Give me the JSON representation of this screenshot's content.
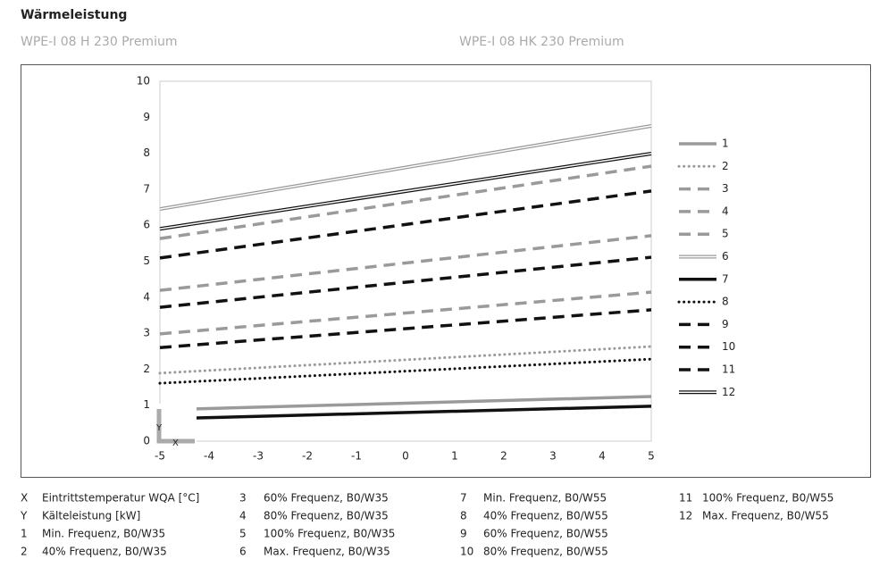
{
  "header": {
    "title": "Wärmeleistung",
    "models": [
      "WPE-I 08 H 230 Premium",
      "WPE-I 08 HK 230 Premium"
    ]
  },
  "chart_data": {
    "type": "line",
    "xlabel": "X",
    "ylabel": "Y",
    "x": [
      -5,
      5
    ],
    "xlim": [
      -5,
      5
    ],
    "xticks": [
      -5,
      -4,
      -3,
      -2,
      -1,
      0,
      1,
      2,
      3,
      4,
      5
    ],
    "ylim": [
      0,
      10
    ],
    "yticks": [
      0,
      1,
      2,
      3,
      4,
      5,
      6,
      7,
      8,
      9,
      10
    ],
    "grid": true,
    "legend": "right",
    "series": [
      {
        "name": "1",
        "color": "#9a9a9a",
        "style": "solid",
        "values": [
          0.87,
          1.24
        ]
      },
      {
        "name": "2",
        "color": "#9a9a9a",
        "style": "dotted",
        "values": [
          1.89,
          2.63
        ]
      },
      {
        "name": "3",
        "color": "#9a9a9a",
        "style": "dashed",
        "values": [
          2.98,
          4.14
        ]
      },
      {
        "name": "4",
        "color": "#9a9a9a",
        "style": "dashed",
        "values": [
          4.19,
          5.71
        ]
      },
      {
        "name": "5",
        "color": "#9a9a9a",
        "style": "dashed",
        "values": [
          5.63,
          7.64
        ]
      },
      {
        "name": "6",
        "color": "#9a9a9a",
        "style": "double",
        "values": [
          6.45,
          8.76
        ]
      },
      {
        "name": "7",
        "color": "#111111",
        "style": "solid",
        "values": [
          0.62,
          0.97
        ]
      },
      {
        "name": "8",
        "color": "#111111",
        "style": "dotted",
        "values": [
          1.61,
          2.28
        ]
      },
      {
        "name": "9",
        "color": "#111111",
        "style": "dashed",
        "values": [
          2.6,
          3.65
        ]
      },
      {
        "name": "10",
        "color": "#111111",
        "style": "dashed",
        "values": [
          3.72,
          5.11
        ]
      },
      {
        "name": "11",
        "color": "#111111",
        "style": "dashed",
        "values": [
          5.09,
          6.95
        ]
      },
      {
        "name": "12",
        "color": "#111111",
        "style": "double",
        "values": [
          5.9,
          7.99
        ]
      }
    ]
  },
  "notes": [
    [
      "X",
      "Eintrittstemperatur WQA [°C]"
    ],
    [
      "Y",
      "Kälteleistung [kW]"
    ],
    [
      "1",
      "Min. Frequenz, B0/W35"
    ],
    [
      "2",
      "40% Frequenz, B0/W35"
    ],
    [
      "3",
      "60% Frequenz, B0/W35"
    ],
    [
      "4",
      "80% Frequenz, B0/W35"
    ],
    [
      "5",
      "100% Frequenz, B0/W35"
    ],
    [
      "6",
      "Max. Frequenz, B0/W35"
    ],
    [
      "7",
      "Min. Frequenz, B0/W55"
    ],
    [
      "8",
      "40% Frequenz, B0/W55"
    ],
    [
      "9",
      "60% Frequenz, B0/W55"
    ],
    [
      "10",
      "80% Frequenz, B0/W55"
    ],
    [
      "11",
      "100% Frequenz, B0/W55"
    ],
    [
      "12",
      "Max. Frequenz, B0/W55"
    ]
  ]
}
